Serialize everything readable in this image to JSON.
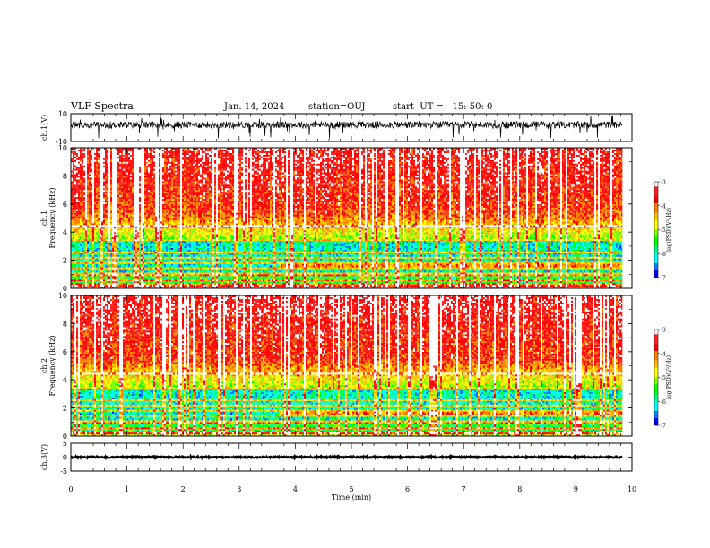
{
  "header": {
    "title": "VLF Spectra",
    "date": "Jan. 14, 2024",
    "station": "station=OUJ",
    "start": "start  UT =   15: 50: 0"
  },
  "colors": {
    "colormap": [
      "#000080",
      "#0000ff",
      "#0080ff",
      "#00ffff",
      "#00ff80",
      "#00ff00",
      "#80ff00",
      "#ffff00",
      "#ffc000",
      "#ff8000",
      "#ff0000",
      "#ff2020",
      "#ffffff"
    ],
    "trace": "#000000",
    "axis": "#000000"
  },
  "chart_data": [
    {
      "id": "ch1-waveform",
      "type": "line",
      "ylabel": "ch.1(V)",
      "ylim": [
        -10,
        10
      ],
      "yticks": [
        10,
        -10
      ],
      "x_range": [
        0,
        9.83
      ],
      "waveform": {
        "center": 2,
        "spread": 2.5,
        "spike_min": -8,
        "spike_max": 9
      }
    },
    {
      "id": "ch1-spectrogram",
      "type": "heatmap",
      "ylabel": "ch.1",
      "ylabel2": "Frequency (kHz)",
      "ylim": [
        0,
        10
      ],
      "yticks": [
        0,
        2,
        4,
        6,
        8,
        10
      ],
      "x_range": [
        0,
        9.83
      ],
      "clim": [
        -7,
        -3
      ],
      "colorbar_label": "log(PSD)(V²/Hz)",
      "colorbar_ticks": [
        "-3",
        "-4",
        "-5",
        "-6",
        "-7"
      ],
      "bands_khz": [
        0.25,
        0.6,
        1.0,
        1.4,
        1.8,
        2.2,
        2.6,
        3.4,
        4.4
      ],
      "strong_band_after_min": {
        "t": 3.7,
        "khz": 1.6
      }
    },
    {
      "id": "ch2-spectrogram",
      "type": "heatmap",
      "ylabel": "ch.2",
      "ylabel2": "Frequency (kHz)",
      "ylim": [
        0,
        10
      ],
      "yticks": [
        0,
        2,
        4,
        6,
        8,
        10
      ],
      "x_range": [
        0,
        9.83
      ],
      "clim": [
        -7,
        -3
      ],
      "colorbar_label": "log(PSD)(V²/Hz)",
      "colorbar_ticks": [
        "-3",
        "-4",
        "-5",
        "-6",
        "-7"
      ],
      "bands_khz": [
        0.25,
        0.6,
        1.0,
        1.4,
        1.8,
        2.2,
        2.6,
        3.4,
        4.4
      ],
      "strong_band_after_min": {
        "t": 3.7,
        "khz": 1.6
      }
    },
    {
      "id": "ch3-waveform",
      "type": "line",
      "ylabel": "ch.3(V)",
      "ylim": [
        -5,
        5
      ],
      "yticks": [
        5,
        0,
        -5
      ],
      "x_range": [
        0,
        9.83
      ],
      "waveform": {
        "center": 0,
        "spread": 0.25,
        "spike_min": -0.3,
        "spike_max": 0.3
      }
    }
  ],
  "x_axis": {
    "xlabel": "Time (min)",
    "xlim": [
      0,
      10
    ],
    "ticks": [
      "0",
      "1",
      "2",
      "3",
      "4",
      "5",
      "6",
      "7",
      "8",
      "9",
      "10"
    ]
  }
}
